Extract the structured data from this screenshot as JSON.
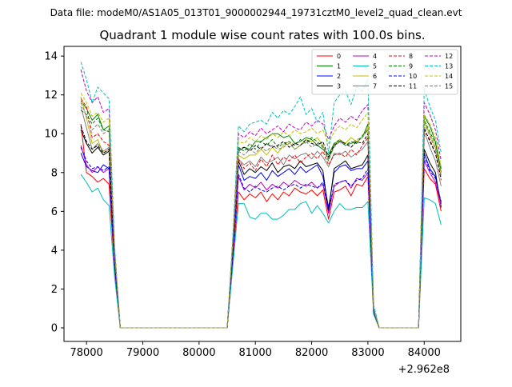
{
  "figure": {
    "suptitle": "Data file: modeM0/AS1A05_013T01_9000002944_19731cztM0_level2_quad_clean.evt"
  },
  "chart_data": {
    "type": "line",
    "title": "Quadrant 1 module wise count rates with 100.0s bins.",
    "xlabel": "",
    "ylabel": "",
    "x_offset_label": "+2.962e8",
    "xlim": [
      77600,
      84650
    ],
    "ylim": [
      -0.7,
      14.5
    ],
    "xticks": [
      78000,
      79000,
      80000,
      81000,
      82000,
      83000,
      84000
    ],
    "yticks": [
      0,
      2,
      4,
      6,
      8,
      10,
      12,
      14
    ],
    "grid": false,
    "legend_position": "top-right",
    "legend_columns": 4,
    "x": [
      77900,
      78000,
      78100,
      78200,
      78300,
      78400,
      78500,
      78600,
      78700,
      78800,
      78900,
      79000,
      79100,
      79200,
      79300,
      79400,
      79500,
      79600,
      79700,
      79800,
      79900,
      80000,
      80100,
      80200,
      80300,
      80400,
      80500,
      80600,
      80700,
      80800,
      80900,
      81000,
      81100,
      81200,
      81300,
      81400,
      81500,
      81600,
      81700,
      81800,
      81900,
      82000,
      82100,
      82200,
      82300,
      82400,
      82500,
      82600,
      82700,
      82800,
      82900,
      83000,
      83100,
      83200,
      83300,
      83400,
      83500,
      83600,
      83700,
      83800,
      83900,
      84000,
      84100,
      84200,
      84300
    ],
    "series": [
      {
        "name": "0",
        "color": "#ff0000",
        "dash": false,
        "values": [
          10.5,
          8.0,
          7.8,
          7.5,
          7.7,
          7.4,
          3.0,
          0.0,
          0.0,
          0.0,
          0.0,
          0.0,
          0.0,
          0.0,
          0.0,
          0.0,
          0.0,
          0.0,
          0.0,
          0.0,
          0.0,
          0.0,
          0.0,
          0.0,
          0.0,
          0.0,
          0.0,
          3.5,
          7.0,
          6.6,
          6.9,
          6.7,
          7.0,
          6.5,
          6.9,
          6.6,
          7.0,
          6.8,
          7.2,
          7.0,
          6.9,
          7.1,
          6.8,
          7.1,
          5.6,
          7.0,
          7.1,
          7.3,
          6.8,
          7.4,
          7.3,
          7.8,
          0.8,
          0.0,
          0.0,
          0.0,
          0.0,
          0.0,
          0.0,
          0.0,
          0.0,
          8.2,
          7.7,
          7.4,
          6.0
        ]
      },
      {
        "name": "1",
        "color": "#008000",
        "dash": false,
        "values": [
          11.7,
          11.3,
          10.7,
          11.0,
          10.2,
          10.4,
          3.8,
          0.0,
          0.0,
          0.0,
          0.0,
          0.0,
          0.0,
          0.0,
          0.0,
          0.0,
          0.0,
          0.0,
          0.0,
          0.0,
          0.0,
          0.0,
          0.0,
          0.0,
          0.0,
          0.0,
          0.0,
          4.4,
          9.1,
          9.3,
          9.2,
          9.6,
          9.6,
          9.8,
          10.0,
          10.0,
          9.8,
          9.9,
          9.5,
          9.6,
          9.8,
          9.7,
          9.4,
          9.2,
          8.9,
          9.5,
          9.6,
          9.4,
          9.5,
          9.6,
          9.8,
          10.5,
          1.0,
          0.0,
          0.0,
          0.0,
          0.0,
          0.0,
          0.0,
          0.0,
          0.0,
          10.9,
          10.4,
          9.6,
          8.0
        ]
      },
      {
        "name": "2",
        "color": "#0000ff",
        "dash": false,
        "values": [
          9.0,
          8.3,
          8.1,
          8.0,
          8.4,
          8.2,
          3.2,
          0.0,
          0.0,
          0.0,
          0.0,
          0.0,
          0.0,
          0.0,
          0.0,
          0.0,
          0.0,
          0.0,
          0.0,
          0.0,
          0.0,
          0.0,
          0.0,
          0.0,
          0.0,
          0.0,
          0.0,
          3.8,
          8.4,
          7.6,
          7.8,
          7.7,
          8.0,
          7.6,
          8.1,
          7.8,
          8.0,
          8.2,
          7.9,
          8.3,
          8.0,
          8.2,
          8.4,
          7.8,
          6.2,
          8.0,
          8.3,
          8.4,
          8.1,
          8.2,
          8.2,
          8.6,
          0.8,
          0.0,
          0.0,
          0.0,
          0.0,
          0.0,
          0.0,
          0.0,
          0.0,
          9.0,
          8.2,
          7.8,
          6.4
        ]
      },
      {
        "name": "3",
        "color": "#000000",
        "dash": false,
        "values": [
          10.2,
          9.5,
          9.0,
          9.3,
          8.9,
          9.1,
          3.4,
          0.0,
          0.0,
          0.0,
          0.0,
          0.0,
          0.0,
          0.0,
          0.0,
          0.0,
          0.0,
          0.0,
          0.0,
          0.0,
          0.0,
          0.0,
          0.0,
          0.0,
          0.0,
          0.0,
          0.0,
          4.0,
          8.6,
          7.9,
          8.2,
          8.0,
          8.3,
          8.1,
          8.5,
          8.0,
          8.3,
          8.4,
          8.2,
          8.6,
          8.3,
          8.4,
          8.5,
          8.1,
          6.0,
          8.2,
          8.4,
          8.6,
          8.2,
          8.3,
          8.4,
          8.9,
          0.8,
          0.0,
          0.0,
          0.0,
          0.0,
          0.0,
          0.0,
          0.0,
          0.0,
          9.2,
          8.5,
          8.0,
          6.2
        ]
      },
      {
        "name": "4",
        "color": "#c000c0",
        "dash": false,
        "values": [
          9.4,
          8.4,
          8.0,
          8.3,
          8.0,
          8.2,
          3.1,
          0.0,
          0.0,
          0.0,
          0.0,
          0.0,
          0.0,
          0.0,
          0.0,
          0.0,
          0.0,
          0.0,
          0.0,
          0.0,
          0.0,
          0.0,
          0.0,
          0.0,
          0.0,
          0.0,
          0.0,
          3.7,
          7.8,
          7.1,
          7.4,
          7.2,
          7.5,
          7.1,
          7.4,
          7.2,
          7.5,
          7.3,
          7.6,
          7.4,
          7.3,
          7.5,
          7.2,
          7.4,
          5.9,
          7.3,
          7.5,
          7.6,
          7.2,
          7.7,
          7.6,
          8.0,
          0.8,
          0.0,
          0.0,
          0.0,
          0.0,
          0.0,
          0.0,
          0.0,
          0.0,
          8.6,
          8.0,
          7.5,
          6.3
        ]
      },
      {
        "name": "5",
        "color": "#00bfbf",
        "dash": false,
        "values": [
          7.9,
          7.5,
          7.0,
          7.2,
          6.6,
          6.3,
          2.6,
          0.0,
          0.0,
          0.0,
          0.0,
          0.0,
          0.0,
          0.0,
          0.0,
          0.0,
          0.0,
          0.0,
          0.0,
          0.0,
          0.0,
          0.0,
          0.0,
          0.0,
          0.0,
          0.0,
          0.0,
          3.2,
          6.4,
          6.4,
          5.7,
          5.6,
          5.9,
          5.9,
          5.6,
          5.6,
          5.8,
          6.1,
          6.1,
          6.4,
          6.5,
          5.9,
          6.3,
          5.9,
          5.4,
          6.0,
          6.4,
          6.1,
          6.1,
          6.2,
          6.2,
          6.5,
          0.7,
          0.0,
          0.0,
          0.0,
          0.0,
          0.0,
          0.0,
          0.0,
          0.0,
          6.7,
          6.6,
          6.4,
          5.3
        ]
      },
      {
        "name": "6",
        "color": "#bfbf00",
        "dash": false,
        "values": [
          11.9,
          10.8,
          9.5,
          9.7,
          9.0,
          9.2,
          3.5,
          0.0,
          0.0,
          0.0,
          0.0,
          0.0,
          0.0,
          0.0,
          0.0,
          0.0,
          0.0,
          0.0,
          0.0,
          0.0,
          0.0,
          0.0,
          0.0,
          0.0,
          0.0,
          0.0,
          0.0,
          4.2,
          8.9,
          8.7,
          8.9,
          8.9,
          9.2,
          8.9,
          9.3,
          9.0,
          9.4,
          9.6,
          9.2,
          9.4,
          9.7,
          9.6,
          9.8,
          9.4,
          8.7,
          9.4,
          9.7,
          9.5,
          9.8,
          9.6,
          9.8,
          10.3,
          0.9,
          0.0,
          0.0,
          0.0,
          0.0,
          0.0,
          0.0,
          0.0,
          0.0,
          10.6,
          10.0,
          9.3,
          7.9
        ]
      },
      {
        "name": "7",
        "color": "#808080",
        "dash": false,
        "values": [
          11.4,
          10.3,
          9.2,
          9.5,
          9.1,
          9.3,
          3.5,
          0.0,
          0.0,
          0.0,
          0.0,
          0.0,
          0.0,
          0.0,
          0.0,
          0.0,
          0.0,
          0.0,
          0.0,
          0.0,
          0.0,
          0.0,
          0.0,
          0.0,
          0.0,
          0.0,
          0.0,
          4.1,
          8.7,
          8.4,
          8.6,
          8.3,
          8.8,
          8.5,
          8.6,
          8.8,
          8.4,
          8.9,
          8.7,
          8.9,
          9.0,
          8.7,
          9.1,
          8.8,
          8.3,
          9.0,
          8.9,
          9.1,
          8.8,
          9.0,
          9.2,
          9.6,
          0.9,
          0.0,
          0.0,
          0.0,
          0.0,
          0.0,
          0.0,
          0.0,
          0.0,
          10.1,
          9.3,
          8.6,
          7.3
        ]
      },
      {
        "name": "8",
        "color": "#ff0000",
        "dash": true,
        "values": [
          11.8,
          11.4,
          9.8,
          10.0,
          9.6,
          9.4,
          3.6,
          0.0,
          0.0,
          0.0,
          0.0,
          0.0,
          0.0,
          0.0,
          0.0,
          0.0,
          0.0,
          0.0,
          0.0,
          0.0,
          0.0,
          0.0,
          0.0,
          0.0,
          0.0,
          0.0,
          0.0,
          4.1,
          8.7,
          8.2,
          8.5,
          8.1,
          8.7,
          8.3,
          8.9,
          8.4,
          8.8,
          8.6,
          8.9,
          8.5,
          8.8,
          9.0,
          8.7,
          9.1,
          8.4,
          8.9,
          9.0,
          8.8,
          9.2,
          8.9,
          9.4,
          9.8,
          0.9,
          0.0,
          0.0,
          0.0,
          0.0,
          0.0,
          0.0,
          0.0,
          0.0,
          10.2,
          9.7,
          9.0,
          7.6
        ]
      },
      {
        "name": "9",
        "color": "#008000",
        "dash": true,
        "values": [
          11.2,
          11.0,
          10.5,
          10.8,
          10.2,
          10.1,
          3.8,
          0.0,
          0.0,
          0.0,
          0.0,
          0.0,
          0.0,
          0.0,
          0.0,
          0.0,
          0.0,
          0.0,
          0.0,
          0.0,
          0.0,
          0.0,
          0.0,
          0.0,
          0.0,
          0.0,
          0.0,
          4.3,
          9.3,
          9.1,
          9.5,
          9.2,
          9.6,
          9.4,
          9.7,
          9.3,
          9.5,
          9.6,
          9.4,
          9.7,
          9.5,
          9.8,
          9.6,
          9.3,
          8.6,
          9.5,
          9.7,
          9.4,
          9.6,
          9.5,
          9.9,
          10.2,
          1.0,
          0.0,
          0.0,
          0.0,
          0.0,
          0.0,
          0.0,
          0.0,
          0.0,
          10.7,
          10.1,
          9.5,
          8.2
        ]
      },
      {
        "name": "10",
        "color": "#0000ff",
        "dash": true,
        "values": [
          9.3,
          8.6,
          8.2,
          8.3,
          8.1,
          8.3,
          3.2,
          0.0,
          0.0,
          0.0,
          0.0,
          0.0,
          0.0,
          0.0,
          0.0,
          0.0,
          0.0,
          0.0,
          0.0,
          0.0,
          0.0,
          0.0,
          0.0,
          0.0,
          0.0,
          0.0,
          0.0,
          3.8,
          7.9,
          7.2,
          7.0,
          7.3,
          7.1,
          7.0,
          7.2,
          7.3,
          7.1,
          7.3,
          7.4,
          7.2,
          7.4,
          7.3,
          7.2,
          7.5,
          6.0,
          7.4,
          7.5,
          7.6,
          7.3,
          7.6,
          7.7,
          8.2,
          0.8,
          0.0,
          0.0,
          0.0,
          0.0,
          0.0,
          0.0,
          0.0,
          0.0,
          8.8,
          8.1,
          7.7,
          6.5
        ]
      },
      {
        "name": "11",
        "color": "#000000",
        "dash": true,
        "values": [
          10.4,
          9.6,
          9.2,
          9.4,
          9.0,
          9.2,
          3.4,
          0.0,
          0.0,
          0.0,
          0.0,
          0.0,
          0.0,
          0.0,
          0.0,
          0.0,
          0.0,
          0.0,
          0.0,
          0.0,
          0.0,
          0.0,
          0.0,
          0.0,
          0.0,
          0.0,
          0.0,
          4.0,
          9.2,
          9.3,
          9.1,
          9.4,
          9.2,
          9.5,
          9.3,
          9.4,
          9.6,
          9.3,
          9.5,
          9.4,
          9.7,
          9.5,
          9.4,
          9.6,
          8.8,
          9.4,
          9.6,
          9.5,
          9.3,
          9.6,
          9.5,
          10.0,
          0.9,
          0.0,
          0.0,
          0.0,
          0.0,
          0.0,
          0.0,
          0.0,
          0.0,
          10.3,
          9.6,
          9.0,
          7.7
        ]
      },
      {
        "name": "12",
        "color": "#c000c0",
        "dash": true,
        "values": [
          13.3,
          12.2,
          11.6,
          11.9,
          11.1,
          11.3,
          4.0,
          0.0,
          0.0,
          0.0,
          0.0,
          0.0,
          0.0,
          0.0,
          0.0,
          0.0,
          0.0,
          0.0,
          0.0,
          0.0,
          0.0,
          0.0,
          0.0,
          0.0,
          0.0,
          0.0,
          0.0,
          4.6,
          10.0,
          9.8,
          10.1,
          9.9,
          10.3,
          10.0,
          10.2,
          10.4,
          10.1,
          10.5,
          10.3,
          10.2,
          10.6,
          10.4,
          10.7,
          10.5,
          9.7,
          10.4,
          10.8,
          10.6,
          10.9,
          10.7,
          11.2,
          11.5,
          1.1,
          0.0,
          0.0,
          0.0,
          0.0,
          0.0,
          0.0,
          0.0,
          0.0,
          11.6,
          11.0,
          10.2,
          8.6
        ]
      },
      {
        "name": "13",
        "color": "#00bfbf",
        "dash": true,
        "values": [
          13.7,
          12.8,
          11.6,
          12.4,
          12.1,
          11.8,
          4.2,
          0.0,
          0.0,
          0.0,
          0.0,
          0.0,
          0.0,
          0.0,
          0.0,
          0.0,
          0.0,
          0.0,
          0.0,
          0.0,
          0.0,
          0.0,
          0.0,
          0.0,
          0.0,
          0.0,
          0.0,
          4.8,
          10.4,
          10.1,
          10.5,
          10.6,
          10.7,
          10.5,
          11.1,
          10.8,
          11.2,
          11.0,
          11.4,
          11.9,
          11.0,
          11.3,
          10.6,
          11.1,
          9.0,
          11.6,
          12.0,
          12.2,
          11.5,
          12.4,
          12.2,
          12.8,
          1.2,
          0.0,
          0.0,
          0.0,
          0.0,
          0.0,
          0.0,
          0.0,
          0.0,
          12.3,
          11.4,
          10.7,
          9.0
        ]
      },
      {
        "name": "14",
        "color": "#bfbf00",
        "dash": true,
        "values": [
          12.1,
          11.6,
          10.9,
          11.1,
          10.6,
          10.8,
          3.9,
          0.0,
          0.0,
          0.0,
          0.0,
          0.0,
          0.0,
          0.0,
          0.0,
          0.0,
          0.0,
          0.0,
          0.0,
          0.0,
          0.0,
          0.0,
          0.0,
          0.0,
          0.0,
          0.0,
          0.0,
          4.5,
          9.6,
          9.5,
          9.8,
          9.6,
          9.9,
          9.7,
          10.0,
          9.8,
          10.1,
          9.9,
          10.2,
          10.0,
          10.1,
          10.3,
          10.0,
          10.2,
          9.5,
          10.1,
          10.4,
          10.2,
          10.5,
          10.3,
          10.7,
          11.1,
          1.0,
          0.0,
          0.0,
          0.0,
          0.0,
          0.0,
          0.0,
          0.0,
          0.0,
          11.0,
          10.5,
          9.8,
          8.3
        ]
      },
      {
        "name": "15",
        "color": "#808080",
        "dash": true,
        "values": [
          11.6,
          10.9,
          10.2,
          10.5,
          10.0,
          10.2,
          3.7,
          0.0,
          0.0,
          0.0,
          0.0,
          0.0,
          0.0,
          0.0,
          0.0,
          0.0,
          0.0,
          0.0,
          0.0,
          0.0,
          0.0,
          0.0,
          0.0,
          0.0,
          0.0,
          0.0,
          0.0,
          4.3,
          9.1,
          8.9,
          9.2,
          9.0,
          9.3,
          9.1,
          9.4,
          9.2,
          9.3,
          9.5,
          9.2,
          9.4,
          9.6,
          9.3,
          9.5,
          9.4,
          8.7,
          9.3,
          9.6,
          9.4,
          9.5,
          9.7,
          9.8,
          10.2,
          0.9,
          0.0,
          0.0,
          0.0,
          0.0,
          0.0,
          0.0,
          0.0,
          0.0,
          10.5,
          9.9,
          9.2,
          7.8
        ]
      }
    ]
  }
}
